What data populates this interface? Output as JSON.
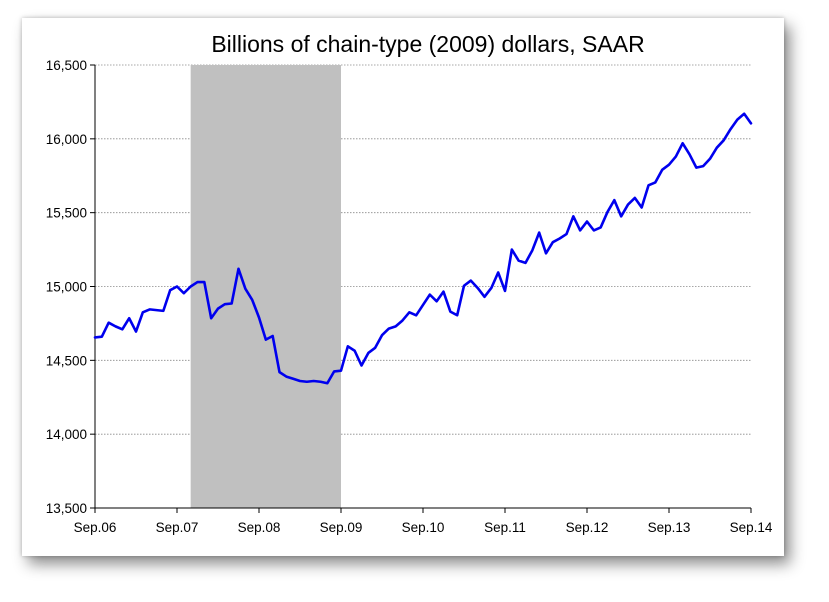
{
  "chart_data": {
    "type": "line",
    "title": "Billions of chain-type (2009) dollars, SAAR",
    "xlabel": "",
    "ylabel": "",
    "ylim": [
      13500,
      16500
    ],
    "yticks": [
      "13,500",
      "14,000",
      "14,500",
      "15,000",
      "15,500",
      "16,000",
      "16,500"
    ],
    "ytick_values": [
      13500,
      14000,
      14500,
      15000,
      15500,
      16000,
      16500
    ],
    "xticks": [
      "Sep.06",
      "Sep.07",
      "Sep.08",
      "Sep.09",
      "Sep.10",
      "Sep.11",
      "Sep.12",
      "Sep.13",
      "Sep.14"
    ],
    "grid": "horizontal dotted",
    "line_color": "#0000ee",
    "recession_color": "#c0c0c0",
    "recession_shade": {
      "start_month": 14,
      "end_month": 36
    },
    "series": [
      {
        "x_unit": "months since Sep.06",
        "values": [
          14655,
          14660,
          14755,
          14730,
          14710,
          14785,
          14695,
          14825,
          14845,
          14840,
          14835,
          14975,
          15000,
          14955,
          15000,
          15030,
          15030,
          14785,
          14850,
          14880,
          14885,
          15120,
          14985,
          14910,
          14790,
          14640,
          14665,
          14420,
          14390,
          14375,
          14360,
          14355,
          14360,
          14355,
          14345,
          14425,
          14430,
          14595,
          14565,
          14465,
          14550,
          14585,
          14670,
          14715,
          14730,
          14770,
          14825,
          14805,
          14875,
          14945,
          14900,
          14965,
          14830,
          14805,
          15005,
          15040,
          14990,
          14930,
          14990,
          15095,
          14970,
          15250,
          15175,
          15160,
          15245,
          15365,
          15225,
          15300,
          15325,
          15355,
          15475,
          15380,
          15440,
          15380,
          15400,
          15505,
          15585,
          15475,
          15555,
          15600,
          15535,
          15685,
          15705,
          15790,
          15825,
          15880,
          15970,
          15895,
          15805,
          15815,
          15865,
          15940,
          15990,
          16065,
          16130,
          16170,
          16105
        ]
      }
    ]
  }
}
